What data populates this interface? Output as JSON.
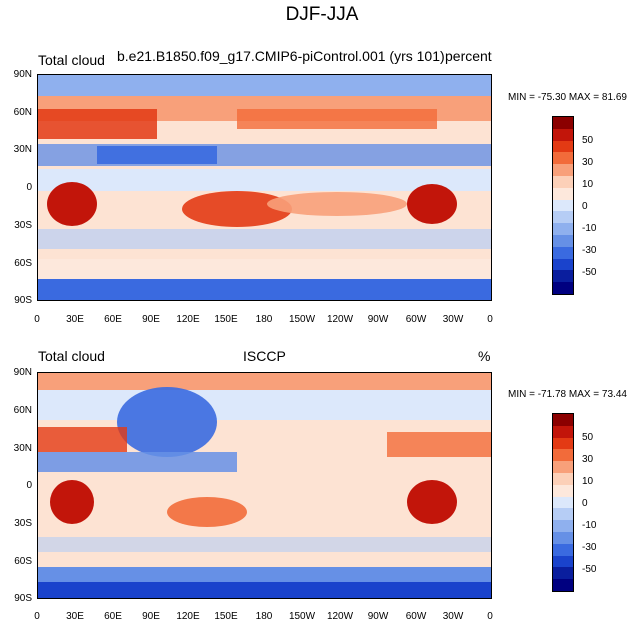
{
  "title": "DJF-JJA",
  "panels": [
    {
      "left_label": "Total cloud",
      "center_label": "b.e21.B1850.f09_g17.CMIP6-piControl.001 (yrs 101)",
      "right_label": "percent",
      "min": "-75.30",
      "max": "81.69",
      "stats_text": "MIN = -75.30 MAX =  81.69"
    },
    {
      "left_label": "Total cloud",
      "center_label": "ISCCP",
      "right_label": "%",
      "min": "-71.78",
      "max": "73.44",
      "stats_text": "MIN = -71.78 MAX =  73.44"
    }
  ],
  "lat_ticks": [
    "90N",
    "60N",
    "30N",
    "0",
    "30S",
    "60S",
    "90S"
  ],
  "lon_ticks": [
    "0",
    "30E",
    "60E",
    "90E",
    "120E",
    "150E",
    "180",
    "150W",
    "120W",
    "90W",
    "60W",
    "30W",
    "0"
  ],
  "colorbar": {
    "labels": [
      "50",
      "30",
      "10",
      "0",
      "-10",
      "-30",
      "-50"
    ],
    "colors": [
      "#8b0000",
      "#c2150a",
      "#e33a14",
      "#f26b3a",
      "#f8a07a",
      "#fcd0b8",
      "#fde8dc",
      "#dce8fb",
      "#b6cdf5",
      "#8fb0ee",
      "#6690e6",
      "#3a6ae0",
      "#1a43cc",
      "#0a1e9e",
      "#000080"
    ]
  },
  "colors": {
    "ocean_neutral": "#fde3d3",
    "cool": "#3a6ae0",
    "warm": "#e33a14"
  }
}
